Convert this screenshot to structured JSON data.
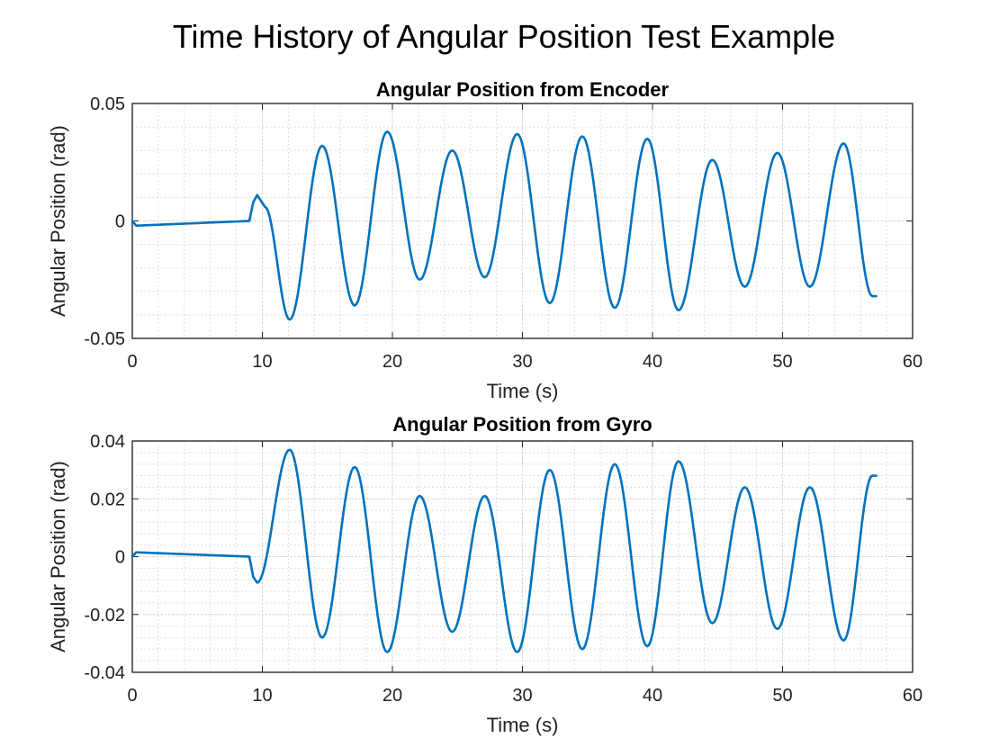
{
  "figure": {
    "title": "Time History of Angular Position Test Example"
  },
  "chart_data": [
    {
      "type": "line",
      "title": "Angular Position from Encoder",
      "xlabel": "Time (s)",
      "ylabel": "Angular Position (rad)",
      "xlim": [
        0,
        60
      ],
      "ylim": [
        -0.05,
        0.05
      ],
      "xticks": [
        0,
        10,
        20,
        30,
        40,
        50,
        60
      ],
      "xtick_labels": [
        "0",
        "10",
        "20",
        "30",
        "40",
        "50",
        "60"
      ],
      "yticks": [
        -0.05,
        0,
        0.05
      ],
      "ytick_labels": [
        "-0.05",
        "0",
        "0.05"
      ],
      "grid": "on (major and minor)",
      "color": "#0072BD",
      "series": [
        {
          "x": [
            0,
            0.3,
            9,
            9.3,
            9.6,
            10.2,
            12.1,
            14.6,
            17.1,
            19.6,
            22.1,
            24.6,
            27.1,
            29.6,
            32.1,
            34.6,
            37.1,
            39.6,
            42.0,
            44.6,
            47.1,
            49.6,
            52.1,
            54.7,
            56.9,
            57.2
          ],
          "y": [
            0,
            -0.002,
            0.0,
            0.008,
            0.011,
            0.006,
            -0.042,
            0.032,
            -0.036,
            0.038,
            -0.025,
            0.03,
            -0.024,
            0.037,
            -0.035,
            0.036,
            -0.037,
            0.035,
            -0.038,
            0.026,
            -0.028,
            0.029,
            -0.028,
            0.033,
            -0.032,
            -0.032
          ]
        }
      ]
    },
    {
      "type": "line",
      "title": "Angular Position from Gyro",
      "xlabel": "Time (s)",
      "ylabel": "Angular Position (rad)",
      "xlim": [
        0,
        60
      ],
      "ylim": [
        -0.04,
        0.04
      ],
      "xticks": [
        0,
        10,
        20,
        30,
        40,
        50,
        60
      ],
      "xtick_labels": [
        "0",
        "10",
        "20",
        "30",
        "40",
        "50",
        "60"
      ],
      "yticks": [
        -0.04,
        -0.02,
        0,
        0.02,
        0.04
      ],
      "ytick_labels": [
        "-0.04",
        "-0.02",
        "0",
        "0.02",
        "0.04"
      ],
      "grid": "on (major and minor)",
      "color": "#0072BD",
      "series": [
        {
          "x": [
            0,
            0.3,
            9,
            9.3,
            9.6,
            12.1,
            14.6,
            17.1,
            19.6,
            22.1,
            24.6,
            27.1,
            29.6,
            32.1,
            34.6,
            37.1,
            39.6,
            42.0,
            44.6,
            47.1,
            49.6,
            52.1,
            54.7,
            56.9,
            57.2
          ],
          "y": [
            0,
            0.0015,
            0.0,
            -0.007,
            -0.009,
            0.037,
            -0.028,
            0.031,
            -0.033,
            0.021,
            -0.026,
            0.021,
            -0.033,
            0.03,
            -0.032,
            0.032,
            -0.031,
            0.033,
            -0.023,
            0.024,
            -0.025,
            0.024,
            -0.029,
            0.028,
            0.028
          ]
        }
      ]
    }
  ]
}
